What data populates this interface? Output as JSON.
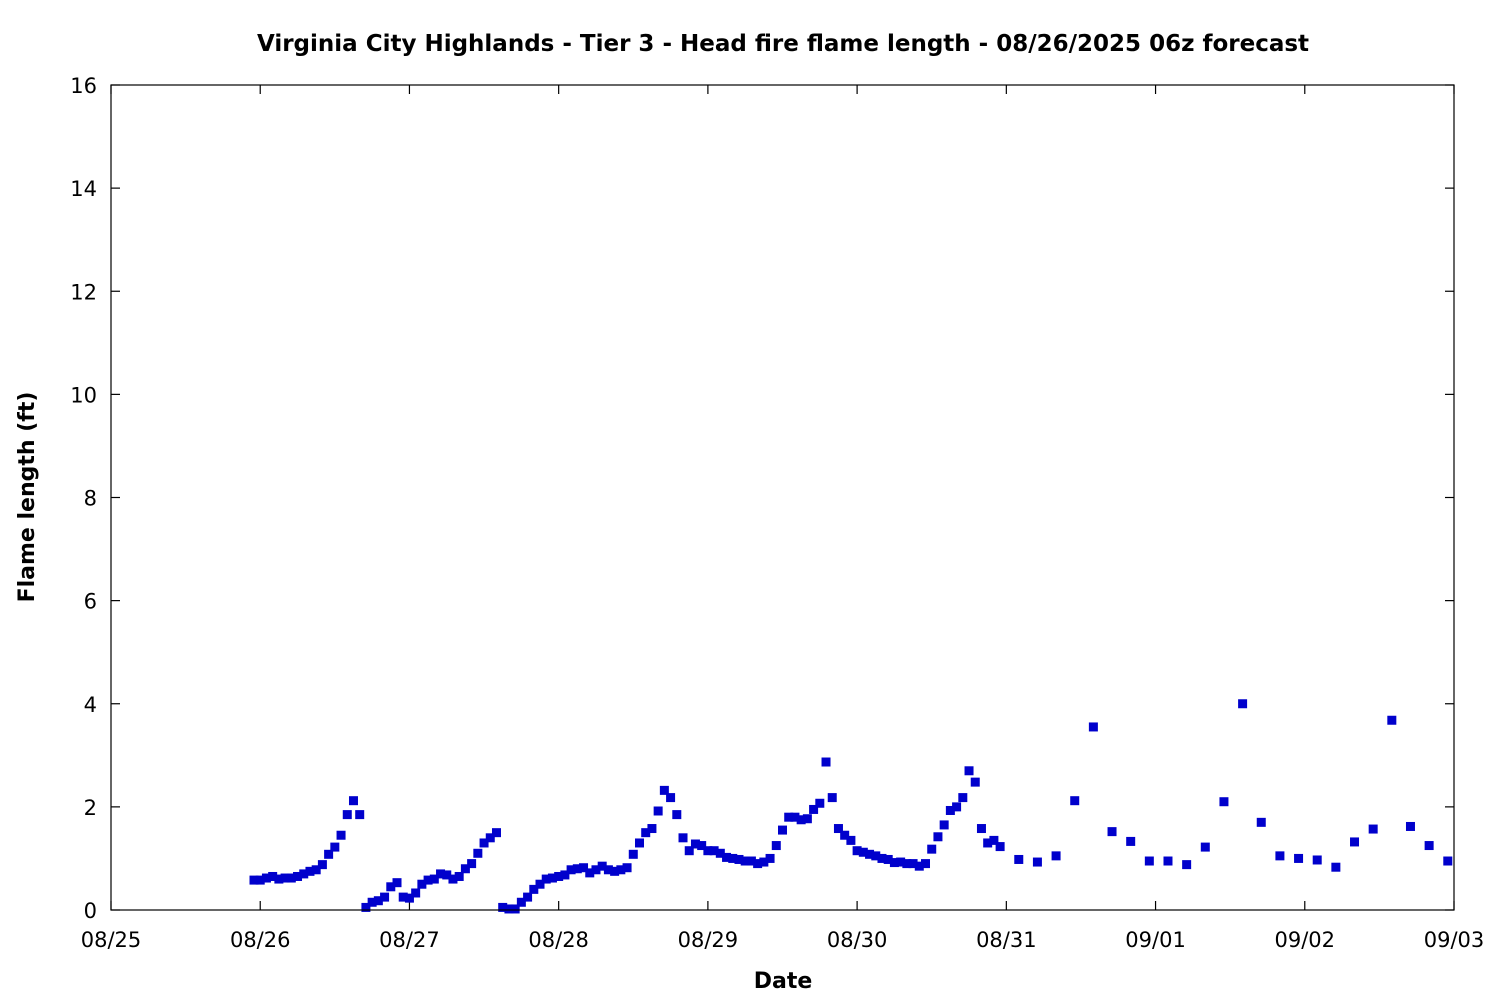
{
  "chart_data": {
    "type": "scatter",
    "title": "Virginia City Highlands - Tier 3 - Head fire flame length - 08/26/2025 06z forecast",
    "xlabel": "Date",
    "ylabel": "Flame length (ft)",
    "x_tick_labels": [
      "08/25",
      "08/26",
      "08/27",
      "08/28",
      "08/29",
      "08/30",
      "08/31",
      "09/01",
      "09/02",
      "09/03"
    ],
    "y_tick_labels": [
      "0",
      "2",
      "4",
      "6",
      "8",
      "10",
      "12",
      "14",
      "16"
    ],
    "xlim": [
      "2025-08-25 00:00",
      "2025-09-03 00:00"
    ],
    "ylim": [
      0,
      16
    ],
    "grid": false,
    "marker": "square",
    "color": "#0000cc",
    "series": [
      {
        "points": [
          [
            "2025-08-25 23:00",
            0.58
          ],
          [
            "2025-08-26 00:00",
            0.58
          ],
          [
            "2025-08-26 01:00",
            0.62
          ],
          [
            "2025-08-26 02:00",
            0.65
          ],
          [
            "2025-08-26 03:00",
            0.6
          ],
          [
            "2025-08-26 04:00",
            0.62
          ],
          [
            "2025-08-26 05:00",
            0.62
          ],
          [
            "2025-08-26 06:00",
            0.65
          ],
          [
            "2025-08-26 07:00",
            0.7
          ],
          [
            "2025-08-26 08:00",
            0.75
          ],
          [
            "2025-08-26 09:00",
            0.78
          ],
          [
            "2025-08-26 10:00",
            0.88
          ],
          [
            "2025-08-26 11:00",
            1.08
          ],
          [
            "2025-08-26 12:00",
            1.22
          ],
          [
            "2025-08-26 13:00",
            1.45
          ],
          [
            "2025-08-26 14:00",
            1.85
          ],
          [
            "2025-08-26 15:00",
            2.12
          ],
          [
            "2025-08-26 16:00",
            1.85
          ],
          [
            "2025-08-26 17:00",
            0.05
          ],
          [
            "2025-08-26 18:00",
            0.15
          ],
          [
            "2025-08-26 19:00",
            0.18
          ],
          [
            "2025-08-26 20:00",
            0.25
          ],
          [
            "2025-08-26 21:00",
            0.45
          ],
          [
            "2025-08-26 22:00",
            0.53
          ],
          [
            "2025-08-26 23:00",
            0.25
          ],
          [
            "2025-08-27 00:00",
            0.23
          ],
          [
            "2025-08-27 01:00",
            0.33
          ],
          [
            "2025-08-27 02:00",
            0.5
          ],
          [
            "2025-08-27 03:00",
            0.58
          ],
          [
            "2025-08-27 04:00",
            0.6
          ],
          [
            "2025-08-27 05:00",
            0.7
          ],
          [
            "2025-08-27 06:00",
            0.68
          ],
          [
            "2025-08-27 07:00",
            0.6
          ],
          [
            "2025-08-27 08:00",
            0.65
          ],
          [
            "2025-08-27 09:00",
            0.8
          ],
          [
            "2025-08-27 10:00",
            0.9
          ],
          [
            "2025-08-27 11:00",
            1.1
          ],
          [
            "2025-08-27 12:00",
            1.3
          ],
          [
            "2025-08-27 13:00",
            1.4
          ],
          [
            "2025-08-27 14:00",
            1.5
          ],
          [
            "2025-08-27 15:00",
            0.05
          ],
          [
            "2025-08-27 16:00",
            0.02
          ],
          [
            "2025-08-27 17:00",
            0.02
          ],
          [
            "2025-08-27 18:00",
            0.15
          ],
          [
            "2025-08-27 19:00",
            0.25
          ],
          [
            "2025-08-27 20:00",
            0.4
          ],
          [
            "2025-08-27 21:00",
            0.5
          ],
          [
            "2025-08-27 22:00",
            0.6
          ],
          [
            "2025-08-27 23:00",
            0.62
          ],
          [
            "2025-08-28 00:00",
            0.65
          ],
          [
            "2025-08-28 01:00",
            0.68
          ],
          [
            "2025-08-28 02:00",
            0.78
          ],
          [
            "2025-08-28 03:00",
            0.8
          ],
          [
            "2025-08-28 04:00",
            0.82
          ],
          [
            "2025-08-28 05:00",
            0.72
          ],
          [
            "2025-08-28 06:00",
            0.78
          ],
          [
            "2025-08-28 07:00",
            0.85
          ],
          [
            "2025-08-28 08:00",
            0.78
          ],
          [
            "2025-08-28 09:00",
            0.75
          ],
          [
            "2025-08-28 10:00",
            0.78
          ],
          [
            "2025-08-28 11:00",
            0.82
          ],
          [
            "2025-08-28 12:00",
            1.08
          ],
          [
            "2025-08-28 13:00",
            1.3
          ],
          [
            "2025-08-28 14:00",
            1.5
          ],
          [
            "2025-08-28 15:00",
            1.58
          ],
          [
            "2025-08-28 16:00",
            1.92
          ],
          [
            "2025-08-28 17:00",
            2.32
          ],
          [
            "2025-08-28 18:00",
            2.18
          ],
          [
            "2025-08-28 19:00",
            1.85
          ],
          [
            "2025-08-28 20:00",
            1.4
          ],
          [
            "2025-08-28 21:00",
            1.15
          ],
          [
            "2025-08-28 22:00",
            1.28
          ],
          [
            "2025-08-28 23:00",
            1.25
          ],
          [
            "2025-08-29 00:00",
            1.15
          ],
          [
            "2025-08-29 01:00",
            1.15
          ],
          [
            "2025-08-29 02:00",
            1.1
          ],
          [
            "2025-08-29 03:00",
            1.02
          ],
          [
            "2025-08-29 04:00",
            1.0
          ],
          [
            "2025-08-29 05:00",
            0.98
          ],
          [
            "2025-08-29 06:00",
            0.95
          ],
          [
            "2025-08-29 07:00",
            0.95
          ],
          [
            "2025-08-29 08:00",
            0.9
          ],
          [
            "2025-08-29 09:00",
            0.93
          ],
          [
            "2025-08-29 10:00",
            1.0
          ],
          [
            "2025-08-29 11:00",
            1.25
          ],
          [
            "2025-08-29 12:00",
            1.55
          ],
          [
            "2025-08-29 13:00",
            1.8
          ],
          [
            "2025-08-29 14:00",
            1.8
          ],
          [
            "2025-08-29 15:00",
            1.75
          ],
          [
            "2025-08-29 16:00",
            1.77
          ],
          [
            "2025-08-29 17:00",
            1.95
          ],
          [
            "2025-08-29 18:00",
            2.07
          ],
          [
            "2025-08-29 19:00",
            2.87
          ],
          [
            "2025-08-29 20:00",
            2.18
          ],
          [
            "2025-08-29 21:00",
            1.58
          ],
          [
            "2025-08-29 22:00",
            1.45
          ],
          [
            "2025-08-29 23:00",
            1.35
          ],
          [
            "2025-08-30 00:00",
            1.15
          ],
          [
            "2025-08-30 01:00",
            1.12
          ],
          [
            "2025-08-30 02:00",
            1.08
          ],
          [
            "2025-08-30 03:00",
            1.05
          ],
          [
            "2025-08-30 04:00",
            1.0
          ],
          [
            "2025-08-30 05:00",
            0.98
          ],
          [
            "2025-08-30 06:00",
            0.92
          ],
          [
            "2025-08-30 07:00",
            0.93
          ],
          [
            "2025-08-30 08:00",
            0.9
          ],
          [
            "2025-08-30 09:00",
            0.9
          ],
          [
            "2025-08-30 10:00",
            0.85
          ],
          [
            "2025-08-30 11:00",
            0.9
          ],
          [
            "2025-08-30 12:00",
            1.18
          ],
          [
            "2025-08-30 13:00",
            1.42
          ],
          [
            "2025-08-30 14:00",
            1.65
          ],
          [
            "2025-08-30 15:00",
            1.93
          ],
          [
            "2025-08-30 16:00",
            2.0
          ],
          [
            "2025-08-30 17:00",
            2.18
          ],
          [
            "2025-08-30 18:00",
            2.7
          ],
          [
            "2025-08-30 19:00",
            2.48
          ],
          [
            "2025-08-30 20:00",
            1.58
          ],
          [
            "2025-08-30 21:00",
            1.3
          ],
          [
            "2025-08-30 22:00",
            1.35
          ],
          [
            "2025-08-30 23:00",
            1.23
          ],
          [
            "2025-08-31 02:00",
            0.98
          ],
          [
            "2025-08-31 05:00",
            0.93
          ],
          [
            "2025-08-31 08:00",
            1.05
          ],
          [
            "2025-08-31 11:00",
            2.12
          ],
          [
            "2025-08-31 14:00",
            3.55
          ],
          [
            "2025-08-31 17:00",
            1.52
          ],
          [
            "2025-08-31 20:00",
            1.33
          ],
          [
            "2025-08-31 23:00",
            0.95
          ],
          [
            "2025-09-01 02:00",
            0.95
          ],
          [
            "2025-09-01 05:00",
            0.88
          ],
          [
            "2025-09-01 08:00",
            1.22
          ],
          [
            "2025-09-01 11:00",
            2.1
          ],
          [
            "2025-09-01 14:00",
            4.0
          ],
          [
            "2025-09-01 17:00",
            1.7
          ],
          [
            "2025-09-01 20:00",
            1.05
          ],
          [
            "2025-09-01 23:00",
            1.0
          ],
          [
            "2025-09-02 02:00",
            0.97
          ],
          [
            "2025-09-02 05:00",
            0.83
          ],
          [
            "2025-09-02 08:00",
            1.32
          ],
          [
            "2025-09-02 11:00",
            1.57
          ],
          [
            "2025-09-02 14:00",
            3.68
          ],
          [
            "2025-09-02 17:00",
            1.62
          ],
          [
            "2025-09-02 20:00",
            1.25
          ],
          [
            "2025-09-02 23:00",
            0.95
          ]
        ]
      }
    ]
  }
}
